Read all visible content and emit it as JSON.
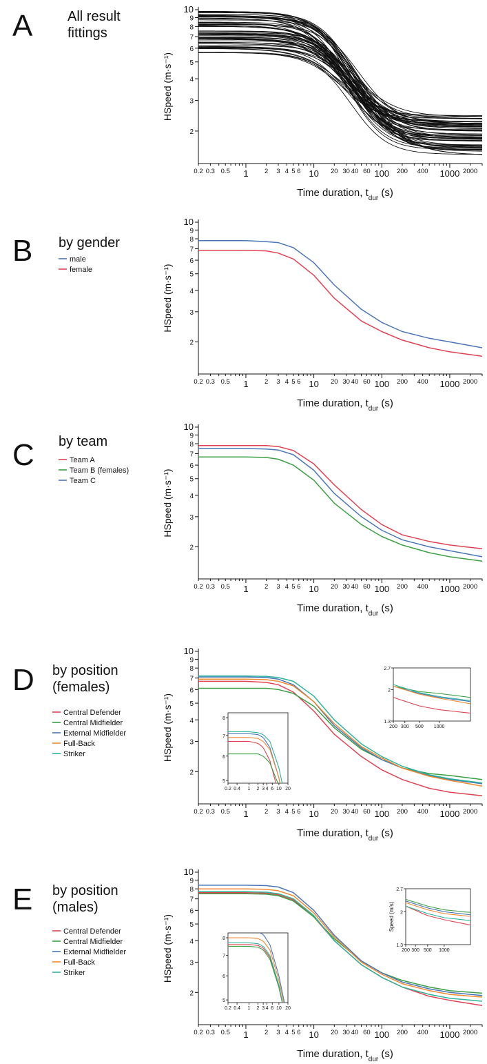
{
  "figure": {
    "panels": [
      {
        "letter": "A",
        "title_lines": [
          "All result",
          "fittings"
        ],
        "legend": [],
        "ylabel": "HSpeed (m·s⁻¹)",
        "xlabel_main": "Time duration, t",
        "xlabel_sub": "dur",
        "xlabel_unit": " (s)"
      },
      {
        "letter": "B",
        "title_lines": [
          "by gender"
        ],
        "legend": [
          "male",
          "female"
        ],
        "ylabel": "HSpeed (m·s⁻¹)",
        "xlabel_main": "Time duration, t",
        "xlabel_sub": "dur",
        "xlabel_unit": " (s)"
      },
      {
        "letter": "C",
        "title_lines": [
          "by team"
        ],
        "legend": [
          "Team A",
          "Team B (females)",
          "Team C"
        ],
        "ylabel": "HSpeed (m·s⁻¹)",
        "xlabel_main": "Time duration, t",
        "xlabel_sub": "dur",
        "xlabel_unit": " (s)"
      },
      {
        "letter": "D",
        "title_lines": [
          "by position",
          "(females)"
        ],
        "legend": [
          "Central Defender",
          "Central Midfielder",
          "External Midfielder",
          "Full-Back",
          "Striker"
        ],
        "ylabel": "HSpeed (m·s⁻¹)",
        "xlabel_main": "Time duration, t",
        "xlabel_sub": "dur",
        "xlabel_unit": " (s)"
      },
      {
        "letter": "E",
        "title_lines": [
          "by position",
          "(males)"
        ],
        "legend": [
          "Central Defender",
          "Central Midfielder",
          "External Midfielder",
          "Full-Back",
          "Striker"
        ],
        "ylabel": "HSpeed (m·s⁻¹)",
        "xlabel_main": "Time duration, t",
        "xlabel_sub": "dur",
        "xlabel_unit": " (s)"
      }
    ]
  },
  "chart_data": [
    {
      "id": "A",
      "type": "line",
      "xscale": "log",
      "yscale": "log",
      "xlim": [
        0.2,
        3000
      ],
      "ylim": [
        1.3,
        10
      ],
      "xticks": [
        0.2,
        0.3,
        0.5,
        1,
        2,
        3,
        4,
        5,
        6,
        10,
        20,
        30,
        40,
        60,
        100,
        200,
        400,
        1000,
        2000
      ],
      "yticks": [
        2,
        3,
        4,
        5,
        6,
        7,
        8,
        9,
        10
      ],
      "family_of_fits": {
        "count": 60,
        "vmax_range": [
          5.6,
          9.8
        ],
        "vend_range": [
          1.45,
          2.5
        ],
        "half_time_range": [
          15,
          30
        ],
        "hill_exponent": 1.6
      }
    },
    {
      "id": "B",
      "type": "line",
      "xscale": "log",
      "yscale": "log",
      "xlim": [
        0.2,
        3000
      ],
      "ylim": [
        1.3,
        10
      ],
      "xticks": [
        0.2,
        0.3,
        0.5,
        1,
        2,
        3,
        4,
        5,
        6,
        10,
        20,
        30,
        40,
        60,
        100,
        200,
        400,
        1000,
        2000
      ],
      "yticks": [
        2,
        3,
        4,
        5,
        6,
        7,
        8,
        9,
        10
      ],
      "x": [
        0.2,
        1,
        2,
        3,
        5,
        10,
        20,
        50,
        100,
        200,
        500,
        1000,
        3000
      ],
      "series": [
        {
          "name": "male",
          "color": "#4a76b8",
          "values": [
            7.8,
            7.8,
            7.7,
            7.6,
            7.1,
            5.8,
            4.3,
            3.1,
            2.6,
            2.3,
            2.1,
            2.0,
            1.85
          ]
        },
        {
          "name": "female",
          "color": "#e04252",
          "values": [
            6.85,
            6.85,
            6.8,
            6.6,
            6.1,
            4.9,
            3.6,
            2.65,
            2.3,
            2.05,
            1.85,
            1.75,
            1.65
          ]
        }
      ]
    },
    {
      "id": "C",
      "type": "line",
      "xscale": "log",
      "yscale": "log",
      "xlim": [
        0.2,
        3000
      ],
      "ylim": [
        1.3,
        10
      ],
      "xticks": [
        0.2,
        0.3,
        0.5,
        1,
        2,
        3,
        4,
        5,
        6,
        10,
        20,
        30,
        40,
        60,
        100,
        200,
        400,
        1000,
        2000
      ],
      "yticks": [
        2,
        3,
        4,
        5,
        6,
        7,
        8,
        9,
        10
      ],
      "x": [
        0.2,
        1,
        2,
        3,
        5,
        10,
        20,
        50,
        100,
        200,
        500,
        1000,
        3000
      ],
      "series": [
        {
          "name": "Team A",
          "color": "#e04252",
          "values": [
            7.8,
            7.8,
            7.8,
            7.7,
            7.3,
            6.1,
            4.6,
            3.3,
            2.7,
            2.35,
            2.15,
            2.05,
            1.95
          ]
        },
        {
          "name": "Team B (females)",
          "color": "#3aa042",
          "values": [
            6.7,
            6.7,
            6.65,
            6.5,
            6.0,
            4.9,
            3.6,
            2.7,
            2.3,
            2.05,
            1.85,
            1.75,
            1.65
          ]
        },
        {
          "name": "Team C",
          "color": "#4a76b8",
          "values": [
            7.5,
            7.5,
            7.45,
            7.35,
            6.9,
            5.6,
            4.1,
            3.0,
            2.5,
            2.2,
            2.0,
            1.9,
            1.75
          ]
        }
      ]
    },
    {
      "id": "D",
      "type": "line",
      "xscale": "log",
      "yscale": "log",
      "xlim": [
        0.2,
        3000
      ],
      "ylim": [
        1.3,
        10
      ],
      "xticks": [
        0.2,
        0.3,
        0.5,
        1,
        2,
        3,
        4,
        5,
        6,
        10,
        20,
        30,
        40,
        60,
        100,
        200,
        400,
        1000,
        2000
      ],
      "yticks": [
        2,
        3,
        4,
        5,
        6,
        7,
        8,
        9,
        10
      ],
      "x": [
        0.2,
        1,
        2,
        3,
        5,
        10,
        20,
        50,
        100,
        200,
        500,
        1000,
        3000
      ],
      "series": [
        {
          "name": "Central Defender",
          "color": "#e04252",
          "values": [
            6.7,
            6.7,
            6.6,
            6.4,
            5.8,
            4.5,
            3.3,
            2.45,
            2.05,
            1.8,
            1.6,
            1.52,
            1.45
          ]
        },
        {
          "name": "Central Midfielder",
          "color": "#3aa042",
          "values": [
            6.1,
            6.1,
            6.1,
            6.0,
            5.7,
            4.8,
            3.6,
            2.7,
            2.35,
            2.1,
            1.95,
            1.9,
            1.8
          ]
        },
        {
          "name": "External Midfielder",
          "color": "#4a76b8",
          "values": [
            7.1,
            7.1,
            7.05,
            6.9,
            6.4,
            5.1,
            3.7,
            2.75,
            2.35,
            2.1,
            1.9,
            1.8,
            1.7
          ]
        },
        {
          "name": "Full-Back",
          "color": "#f08a30",
          "values": [
            6.9,
            6.9,
            6.85,
            6.7,
            6.3,
            5.1,
            3.8,
            2.8,
            2.4,
            2.1,
            1.88,
            1.78,
            1.65
          ]
        },
        {
          "name": "Striker",
          "color": "#2cb59a",
          "values": [
            7.2,
            7.2,
            7.15,
            7.05,
            6.7,
            5.5,
            4.0,
            2.9,
            2.45,
            2.15,
            1.92,
            1.82,
            1.72
          ]
        }
      ],
      "insets": [
        {
          "xlim": [
            0.2,
            20
          ],
          "ylim": [
            4.9,
            8.3
          ],
          "xticks": [
            0.2,
            0.4,
            1,
            2,
            3,
            4,
            6,
            10,
            20
          ],
          "yticks": [
            5,
            6,
            7,
            8
          ]
        },
        {
          "xlim": [
            200,
            3000
          ],
          "ylim": [
            1.3,
            2.7
          ],
          "xticks": [
            200,
            300,
            500,
            1000
          ],
          "yticks": [
            1.3,
            2,
            2.7
          ]
        }
      ]
    },
    {
      "id": "E",
      "type": "line",
      "xscale": "log",
      "yscale": "log",
      "xlim": [
        0.2,
        3000
      ],
      "ylim": [
        1.3,
        10
      ],
      "xticks": [
        0.2,
        0.3,
        0.5,
        1,
        2,
        3,
        4,
        5,
        6,
        10,
        20,
        30,
        40,
        60,
        100,
        200,
        400,
        1000,
        2000
      ],
      "yticks": [
        2,
        3,
        4,
        5,
        6,
        7,
        8,
        9,
        10
      ],
      "x": [
        0.2,
        1,
        2,
        3,
        5,
        10,
        20,
        50,
        100,
        200,
        500,
        1000,
        3000
      ],
      "series": [
        {
          "name": "Central Defender",
          "color": "#e04252",
          "values": [
            7.6,
            7.6,
            7.55,
            7.4,
            6.9,
            5.5,
            4.0,
            2.9,
            2.45,
            2.15,
            1.9,
            1.8,
            1.68
          ]
        },
        {
          "name": "Central Midfielder",
          "color": "#3aa042",
          "values": [
            7.5,
            7.5,
            7.45,
            7.3,
            6.8,
            5.5,
            4.1,
            3.05,
            2.6,
            2.35,
            2.15,
            2.05,
            1.98
          ]
        },
        {
          "name": "External Midfielder",
          "color": "#4a76b8",
          "values": [
            8.4,
            8.4,
            8.35,
            8.2,
            7.6,
            6.0,
            4.3,
            3.05,
            2.6,
            2.3,
            2.1,
            2.0,
            1.92
          ]
        },
        {
          "name": "Full-Back",
          "color": "#f08a30",
          "values": [
            8.0,
            8.0,
            7.95,
            7.8,
            7.3,
            5.8,
            4.2,
            3.0,
            2.55,
            2.25,
            2.05,
            1.95,
            1.88
          ]
        },
        {
          "name": "Striker",
          "color": "#2cb59a",
          "values": [
            7.7,
            7.7,
            7.65,
            7.5,
            7.0,
            5.6,
            4.0,
            2.9,
            2.45,
            2.15,
            1.95,
            1.85,
            1.78
          ]
        }
      ],
      "insets": [
        {
          "xlim": [
            0.2,
            20
          ],
          "ylim": [
            4.9,
            8.3
          ],
          "xticks": [
            0.2,
            0.4,
            1,
            2,
            3,
            4,
            6,
            10,
            20
          ],
          "yticks": [
            5,
            6,
            7,
            8
          ]
        },
        {
          "xlim": [
            200,
            3000
          ],
          "ylim": [
            1.3,
            2.7
          ],
          "xticks": [
            200,
            300,
            500,
            1000
          ],
          "yticks": [
            1.3,
            2,
            2.7
          ],
          "ylabel": "Speed (m/s)"
        }
      ]
    }
  ]
}
